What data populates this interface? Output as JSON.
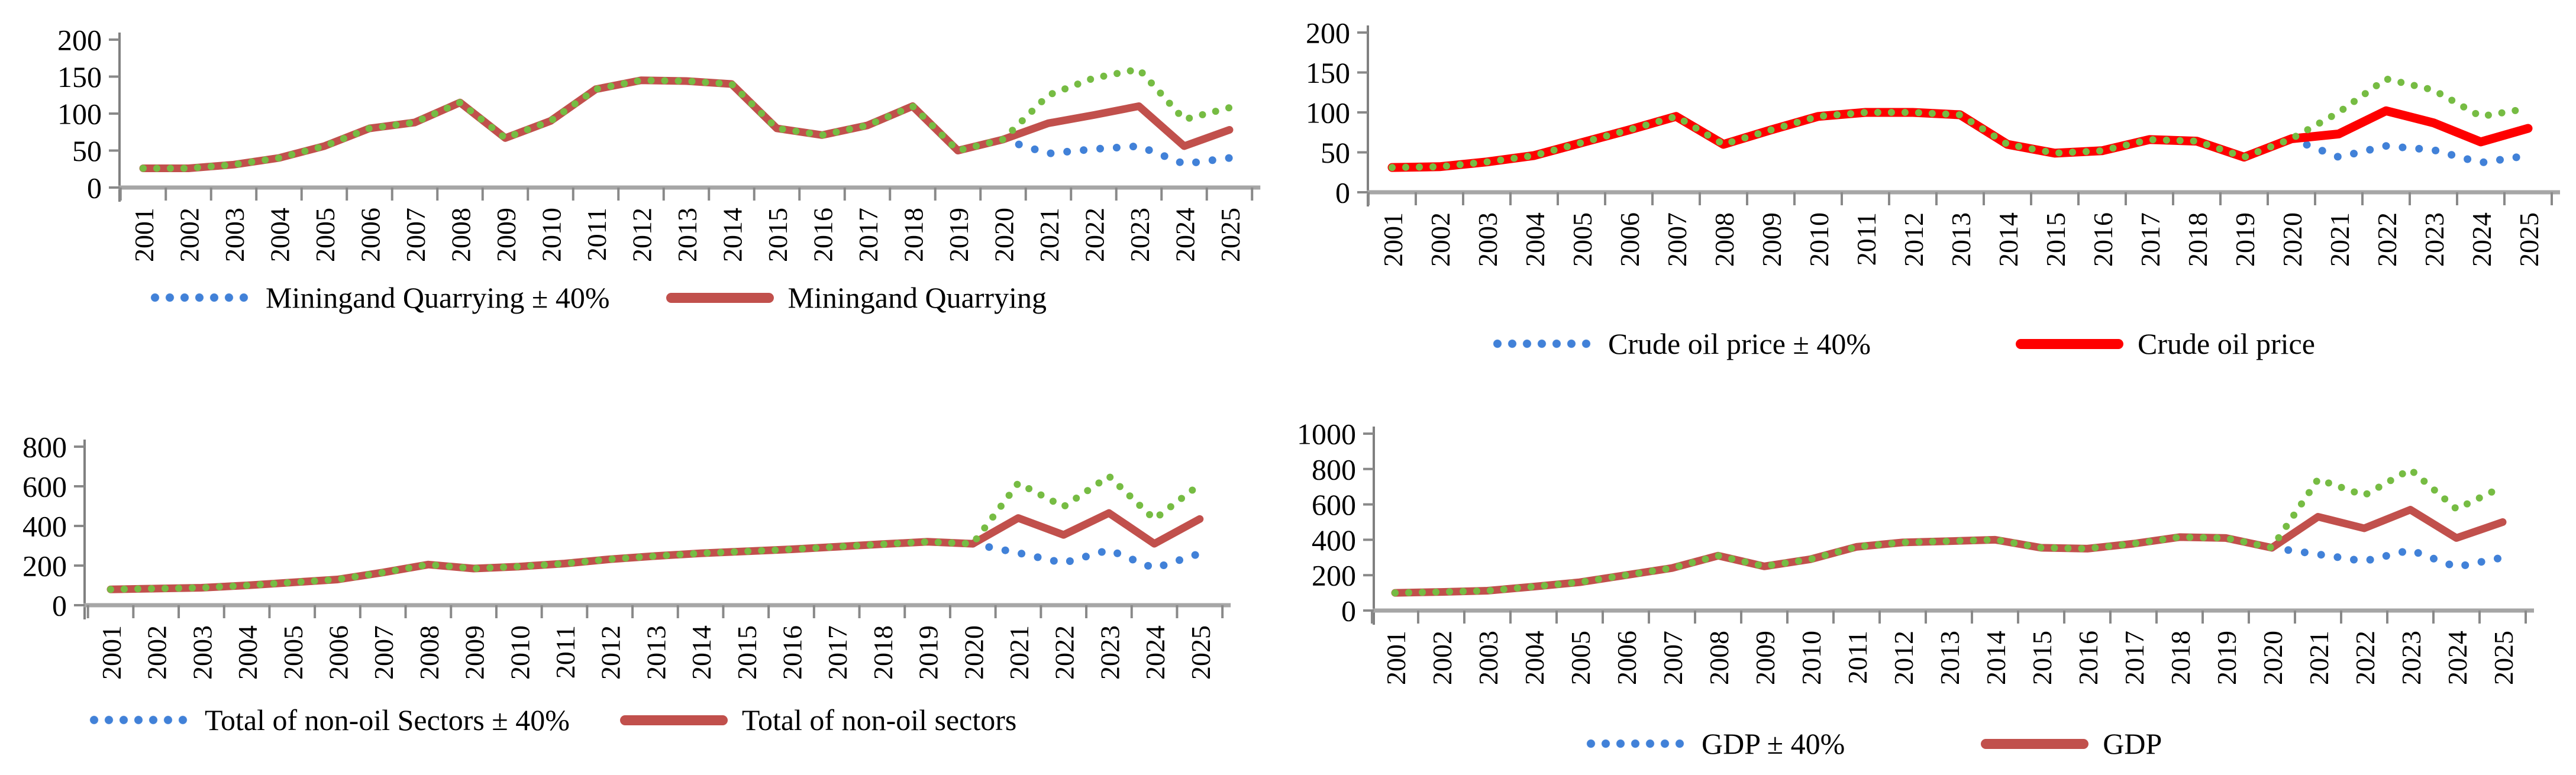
{
  "page": {
    "background": "#ffffff"
  },
  "colors": {
    "band_dot_blue": "#4181d8",
    "band_dot_green": "#76bc43",
    "brick_red": "#c1504c",
    "bright_red": "#fe0000",
    "x_axis_line": "#a6a6a6",
    "tick_mark": "#898989",
    "y_axis_line": "#808080",
    "label_text": "#000000"
  },
  "x_years": [
    2001,
    2002,
    2003,
    2004,
    2005,
    2006,
    2007,
    2008,
    2009,
    2010,
    2011,
    2012,
    2013,
    2014,
    2015,
    2016,
    2017,
    2018,
    2019,
    2020,
    2021,
    2022,
    2023,
    2024,
    2025
  ],
  "forecast_start_year": 2021,
  "chart_data": [
    {
      "type": "line",
      "id": "mining-and-quarrying",
      "position": "top-left",
      "ylim": [
        0,
        200
      ],
      "ytick_step": 50,
      "ytick_labels": [
        "200",
        "150",
        "100",
        "50",
        "0"
      ],
      "grid": false,
      "x": [
        2001,
        2002,
        2003,
        2004,
        2005,
        2006,
        2007,
        2008,
        2009,
        2010,
        2011,
        2012,
        2013,
        2014,
        2015,
        2016,
        2017,
        2018,
        2019,
        2020,
        2021,
        2022,
        2023,
        2024,
        2025
      ],
      "values": [
        26,
        26,
        31,
        40,
        56,
        80,
        88,
        115,
        67,
        90,
        133,
        145,
        144,
        140,
        80,
        71,
        84,
        110,
        50,
        65,
        87,
        98,
        110,
        56,
        78
      ],
      "line_color": "#c1504c",
      "band": {
        "start_year": 2020,
        "years": [
          2020,
          2021,
          2022,
          2023,
          2024,
          2025
        ],
        "upper": [
          65,
          125,
          148,
          160,
          92,
          108
        ],
        "lower": [
          65,
          46,
          52,
          56,
          32,
          40
        ],
        "upper_color": "#76bc43",
        "lower_color": "#4181d8"
      },
      "legend": [
        {
          "marker": "dots",
          "color": "#4181d8",
          "label": "Miningand Quarrying ± 40%"
        },
        {
          "marker": "line",
          "color": "#c1504c",
          "label": "Miningand Quarrying"
        }
      ]
    },
    {
      "type": "line",
      "id": "crude-oil-price",
      "position": "top-right",
      "ylim": [
        0,
        200
      ],
      "ytick_step": 50,
      "ytick_labels": [
        "200",
        "150",
        "100",
        "50",
        "0"
      ],
      "grid": false,
      "x": [
        2001,
        2002,
        2003,
        2004,
        2005,
        2006,
        2007,
        2008,
        2009,
        2010,
        2011,
        2012,
        2013,
        2014,
        2015,
        2016,
        2017,
        2018,
        2019,
        2020,
        2021,
        2022,
        2023,
        2024,
        2025
      ],
      "values": [
        31,
        32,
        38,
        46,
        62,
        78,
        95,
        60,
        78,
        95,
        100,
        100,
        97,
        60,
        49,
        52,
        66,
        64,
        44,
        67,
        73,
        102,
        87,
        63,
        80
      ],
      "line_color": "#fe0000",
      "band": {
        "start_year": 2020,
        "years": [
          2020,
          2021,
          2022,
          2023,
          2024,
          2025
        ],
        "upper": [
          67,
          100,
          142,
          128,
          95,
          105
        ],
        "lower": [
          67,
          44,
          58,
          53,
          37,
          46
        ],
        "upper_color": "#76bc43",
        "lower_color": "#4181d8"
      },
      "legend": [
        {
          "marker": "dots",
          "color": "#4181d8",
          "label": "Crude oil price ± 40%"
        },
        {
          "marker": "line",
          "color": "#fe0000",
          "label": "Crude oil price"
        }
      ]
    },
    {
      "type": "line",
      "id": "total-non-oil-sectors",
      "position": "bottom-left",
      "ylim": [
        0,
        800
      ],
      "ytick_step": 200,
      "ytick_labels": [
        "800",
        "600",
        "400",
        "200",
        "0"
      ],
      "grid": false,
      "x": [
        2001,
        2002,
        2003,
        2004,
        2005,
        2006,
        2007,
        2008,
        2009,
        2010,
        2011,
        2012,
        2013,
        2014,
        2015,
        2016,
        2017,
        2018,
        2019,
        2020,
        2021,
        2022,
        2023,
        2024,
        2025
      ],
      "values": [
        80,
        84,
        88,
        100,
        115,
        130,
        165,
        205,
        185,
        195,
        210,
        232,
        248,
        262,
        272,
        282,
        295,
        308,
        320,
        310,
        440,
        355,
        465,
        310,
        435
      ],
      "line_color": "#c1504c",
      "band": {
        "start_year": 2020,
        "years": [
          2020,
          2021,
          2022,
          2023,
          2024,
          2025
        ],
        "upper": [
          310,
          616,
          497,
          651,
          434,
          609
        ],
        "lower": [
          310,
          264,
          213,
          279,
          186,
          261
        ],
        "upper_color": "#76bc43",
        "lower_color": "#4181d8"
      },
      "legend": [
        {
          "marker": "dots",
          "color": "#4181d8",
          "label": "Total of non-oil Sectors ± 40%"
        },
        {
          "marker": "line",
          "color": "#c1504c",
          "label": "Total of non-oil sectors"
        }
      ]
    },
    {
      "type": "line",
      "id": "gdp",
      "position": "bottom-right",
      "ylim": [
        0,
        1000
      ],
      "ytick_step": 200,
      "ytick_labels": [
        "1000",
        "800",
        "600",
        "400",
        "200",
        "0"
      ],
      "grid": false,
      "x": [
        2001,
        2002,
        2003,
        2004,
        2005,
        2006,
        2007,
        2008,
        2009,
        2010,
        2011,
        2012,
        2013,
        2014,
        2015,
        2016,
        2017,
        2018,
        2019,
        2020,
        2021,
        2022,
        2023,
        2024,
        2025
      ],
      "values": [
        100,
        105,
        112,
        135,
        160,
        200,
        240,
        310,
        250,
        290,
        360,
        385,
        392,
        400,
        355,
        350,
        378,
        415,
        410,
        355,
        530,
        465,
        570,
        410,
        500
      ],
      "line_color": "#c1504c",
      "band": {
        "start_year": 2020,
        "years": [
          2020,
          2021,
          2022,
          2023,
          2024,
          2025
        ],
        "upper": [
          355,
          742,
          651,
          798,
          574,
          700
        ],
        "lower": [
          355,
          318,
          279,
          342,
          246,
          300
        ],
        "upper_color": "#76bc43",
        "lower_color": "#4181d8"
      },
      "legend": [
        {
          "marker": "dots",
          "color": "#4181d8",
          "label": "GDP ± 40%"
        },
        {
          "marker": "line",
          "color": "#c1504c",
          "label": "GDP"
        }
      ]
    }
  ]
}
